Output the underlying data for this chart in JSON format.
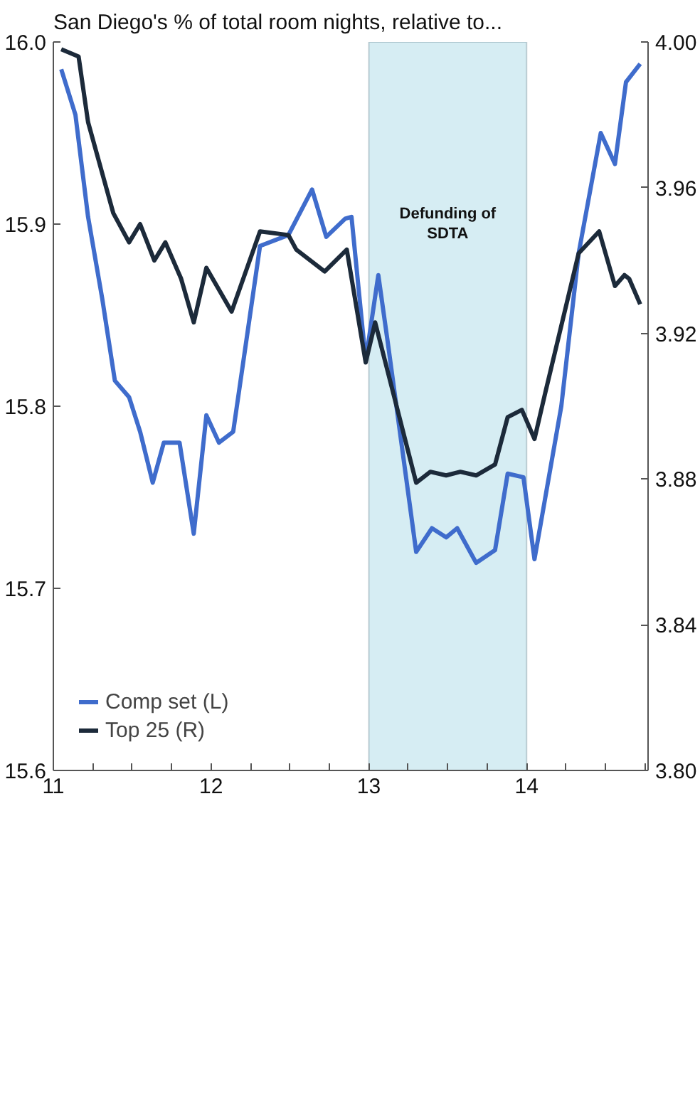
{
  "chart_data": {
    "type": "line",
    "title": "San Diego's % of total room nights, relative to...",
    "xlim": [
      11,
      14.77
    ],
    "xticks": [
      11,
      {
        "value": 11.25,
        "label": null
      },
      {
        "value": 11.5,
        "label": null
      },
      {
        "value": 11.75,
        "label": null
      },
      12,
      {
        "value": 12.25,
        "label": null
      },
      {
        "value": 12.5,
        "label": null
      },
      {
        "value": 12.75,
        "label": null
      },
      13,
      {
        "value": 13.25,
        "label": null
      },
      {
        "value": 13.5,
        "label": null
      },
      {
        "value": 13.75,
        "label": null
      },
      14,
      {
        "value": 14.25,
        "label": null
      },
      {
        "value": 14.5,
        "label": null
      },
      {
        "value": 14.75,
        "label": null
      }
    ],
    "ylim": [
      15.6,
      16.0
    ],
    "yticks": [
      {
        "value": 15.6,
        "label": "15.6"
      },
      {
        "value": 15.7,
        "label": "15.7"
      },
      {
        "value": 15.8,
        "label": "15.8"
      },
      {
        "value": 15.9,
        "label": "15.9"
      },
      {
        "value": 16.0,
        "label": "16.0"
      }
    ],
    "y2lim": [
      3.8,
      4.0
    ],
    "y2ticks": [
      {
        "value": 3.8,
        "label": "3.80"
      },
      {
        "value": 3.84,
        "label": "3.84"
      },
      {
        "value": 3.88,
        "label": "3.88"
      },
      {
        "value": 3.92,
        "label": "3.92"
      },
      {
        "value": 3.96,
        "label": "3.96"
      },
      {
        "value": 4.0,
        "label": "4.00"
      }
    ],
    "grid": false,
    "legend": "bottom left",
    "bands": [
      {
        "axis": "x",
        "from": 13,
        "to": 14,
        "label": "Defunding of\nSDTA",
        "color": "#d6edf3"
      }
    ],
    "series": [
      {
        "name": "Comp set (L)",
        "color": "#3f6ccc",
        "x": [
          11.05,
          11.14,
          11.22,
          11.31,
          11.39,
          11.48,
          11.55,
          11.63,
          11.7,
          11.8,
          11.89,
          11.97,
          12.05,
          12.14,
          12.31,
          12.49,
          12.64,
          12.73,
          12.85,
          12.89,
          12.98,
          13.06,
          13.12,
          13.3,
          13.4,
          13.49,
          13.56,
          13.68,
          13.8,
          13.88,
          13.98,
          14.05,
          14.22,
          14.33,
          14.47,
          14.56,
          14.63,
          14.72
        ],
        "values": [
          15.985,
          15.96,
          15.904,
          15.859,
          15.814,
          15.805,
          15.786,
          15.758,
          15.78,
          15.78,
          15.73,
          15.795,
          15.78,
          15.786,
          15.888,
          15.894,
          15.919,
          15.893,
          15.903,
          15.904,
          15.825,
          15.872,
          15.835,
          15.72,
          15.733,
          15.728,
          15.733,
          15.714,
          15.721,
          15.763,
          15.761,
          15.716,
          15.8,
          15.884,
          15.95,
          15.933,
          15.978,
          15.988
        ]
      },
      {
        "name": "Top 25 (R)",
        "color": "#1c2a3a",
        "axis": "y2",
        "x": [
          11.05,
          11.16,
          11.22,
          11.38,
          11.48,
          11.55,
          11.64,
          11.71,
          11.81,
          11.89,
          11.97,
          12.13,
          12.31,
          12.49,
          12.54,
          12.72,
          12.86,
          12.98,
          13.04,
          13.3,
          13.39,
          13.49,
          13.58,
          13.68,
          13.8,
          13.88,
          13.97,
          14.05,
          14.12,
          14.33,
          14.46,
          14.56,
          14.62,
          14.65,
          14.72
        ],
        "values": [
          3.998,
          3.996,
          3.978,
          3.953,
          3.945,
          3.95,
          3.94,
          3.945,
          3.935,
          3.923,
          3.938,
          3.926,
          3.948,
          3.947,
          3.943,
          3.937,
          3.943,
          3.912,
          3.923,
          3.879,
          3.882,
          3.881,
          3.882,
          3.881,
          3.884,
          3.897,
          3.899,
          3.891,
          3.904,
          3.942,
          3.948,
          3.933,
          3.936,
          3.935,
          3.928
        ]
      }
    ]
  }
}
